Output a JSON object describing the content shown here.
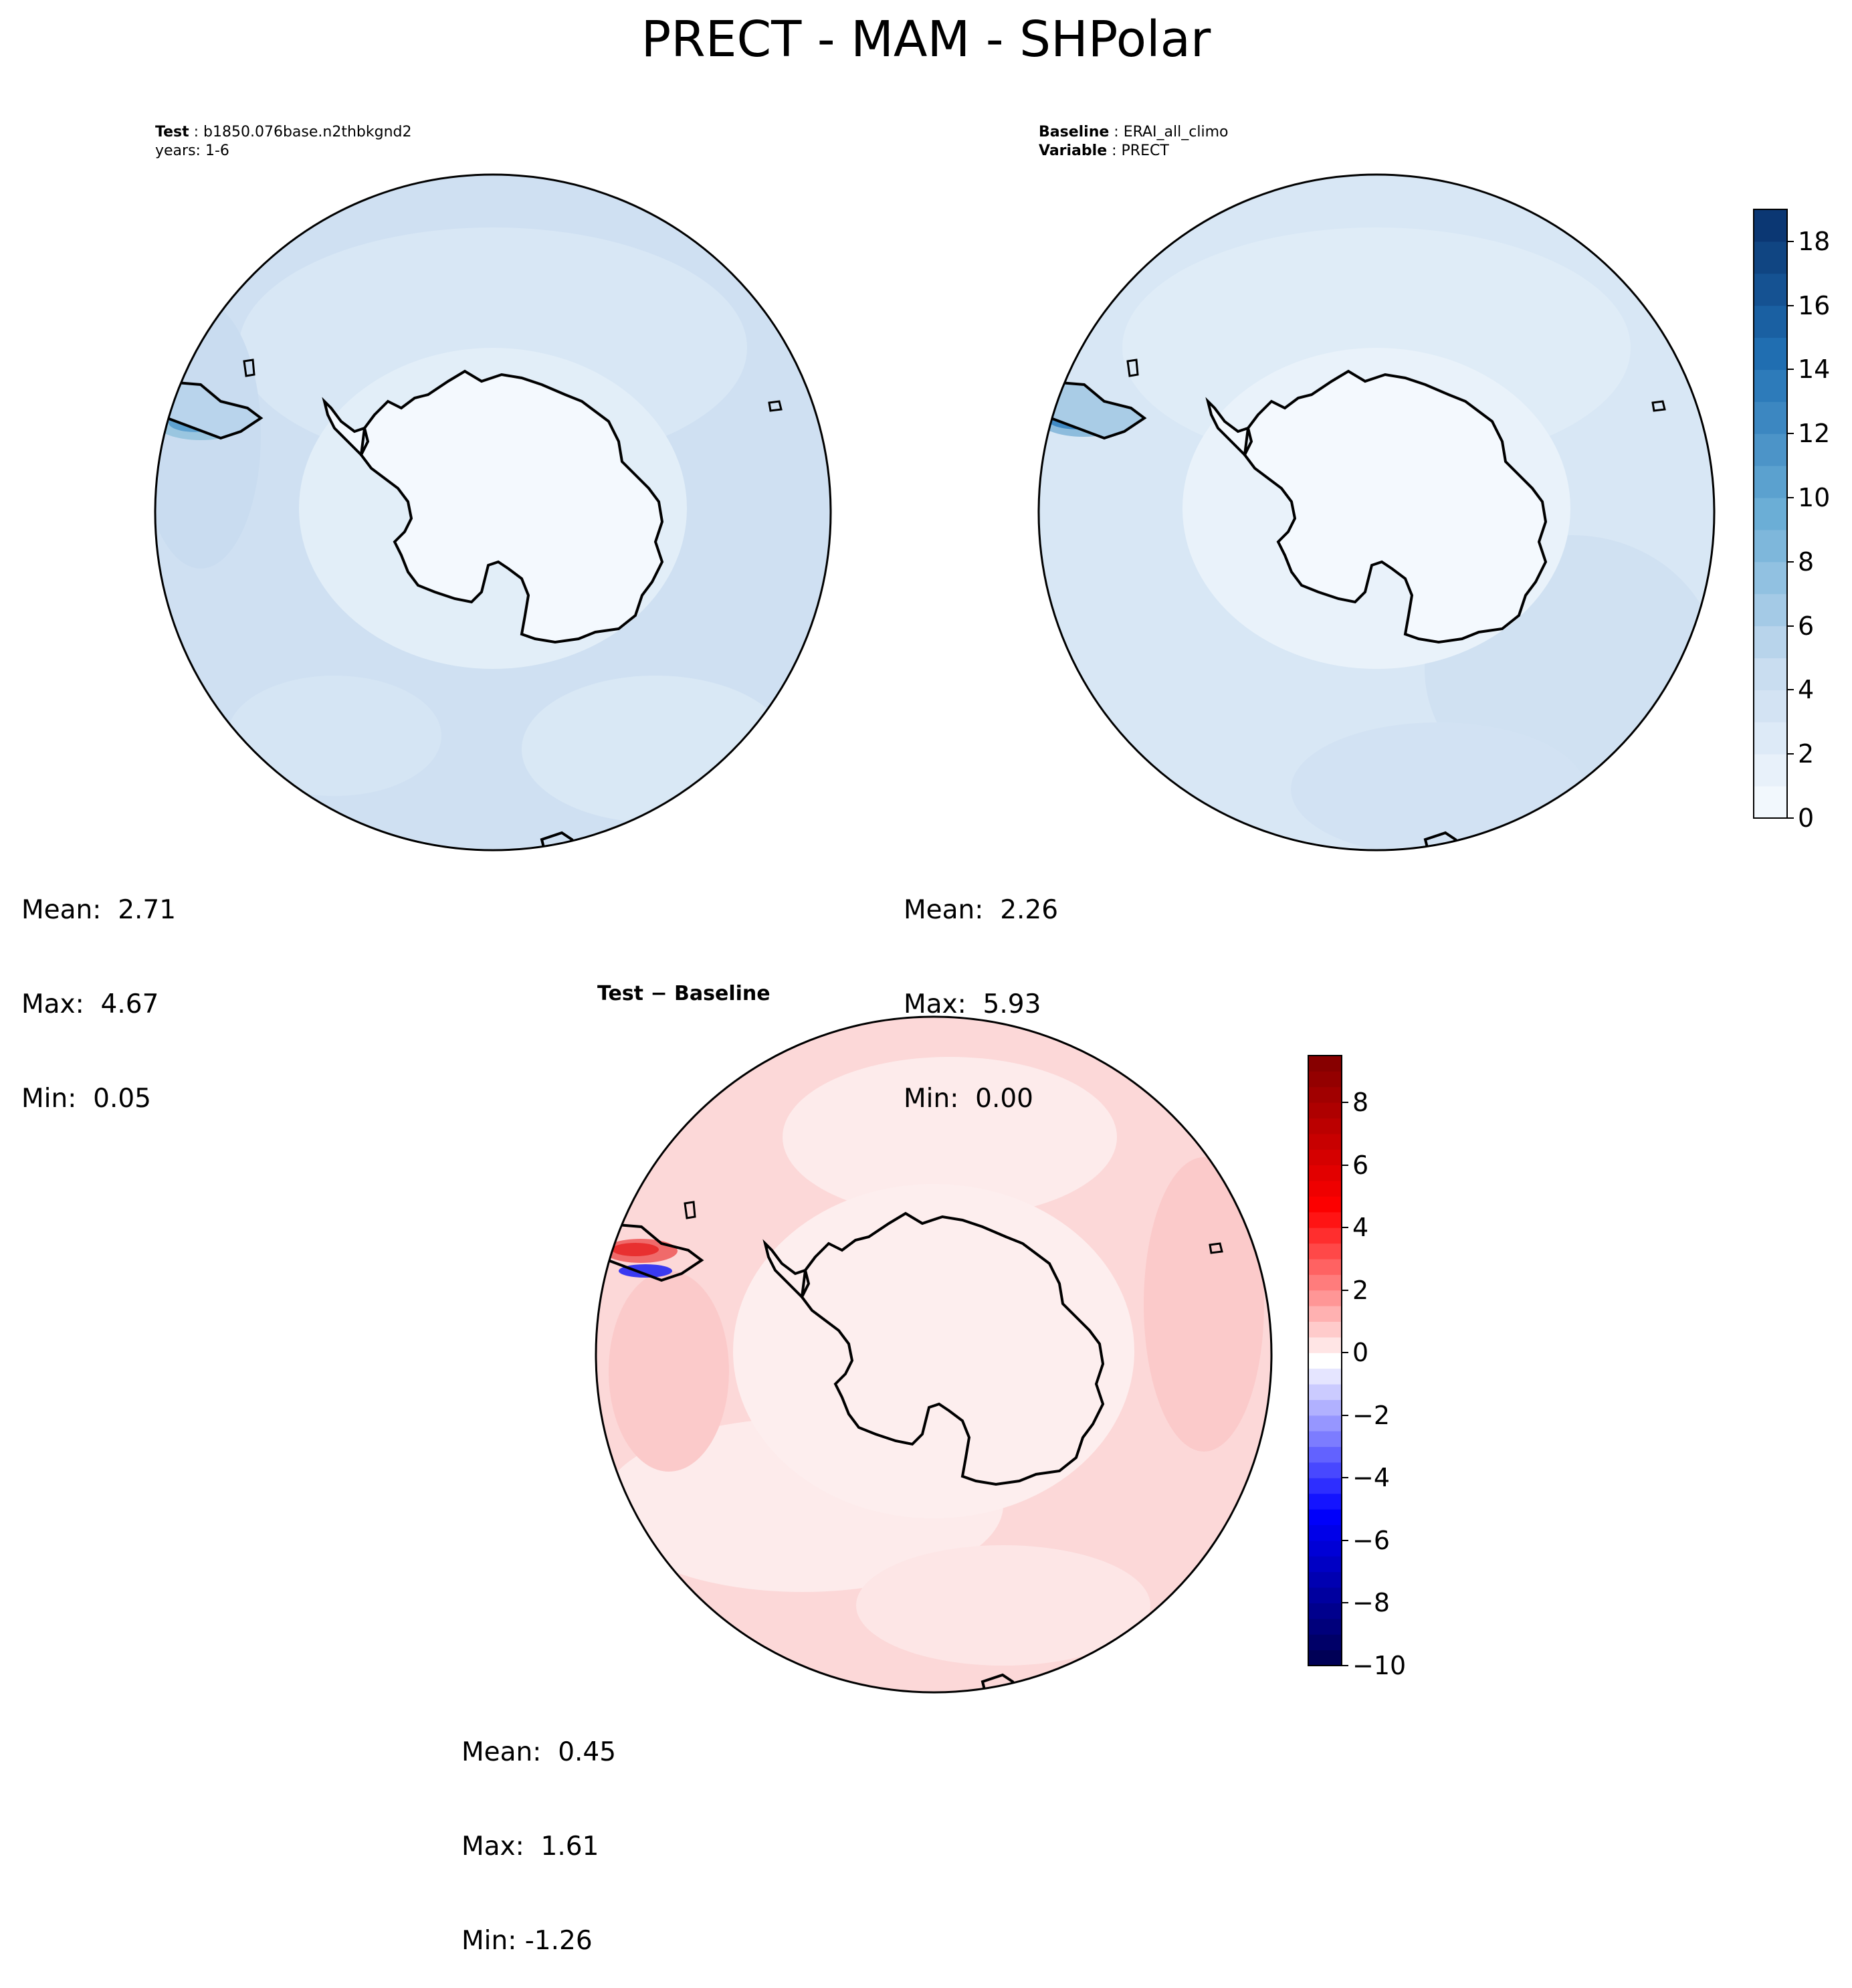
{
  "figure_title": "PRECT - MAM - SHPolar",
  "panels": [
    {
      "id": "test",
      "header_line1_label": "Test",
      "header_line1_value": "b1850.076base.n2thbkgnd2",
      "header_line2": "years: 1-6",
      "stats": {
        "mean": "Mean:  2.71",
        "max": "Max:  4.67",
        "min": "Min:  0.05"
      }
    },
    {
      "id": "baseline",
      "header_line1_label": "Baseline",
      "header_line1_value": "ERAI_all_climo",
      "header_line2_label": "Variable",
      "header_line2_value": "PRECT",
      "stats": {
        "mean": "Mean:  2.26",
        "max": "Max:  5.93",
        "min": "Min:  0.00"
      }
    },
    {
      "id": "diff",
      "title": "Test − Baseline",
      "stats": {
        "mean": "Mean:  0.45",
        "max": "Max:  1.61",
        "min": "Min: -1.26"
      }
    }
  ],
  "colorbars": {
    "precip": {
      "colormap": "Blues",
      "range": [
        0,
        19
      ],
      "ticks": [
        "0",
        "2",
        "4",
        "6",
        "8",
        "10",
        "12",
        "14",
        "16",
        "18"
      ],
      "tick_values": [
        0,
        2,
        4,
        6,
        8,
        10,
        12,
        14,
        16,
        18
      ]
    },
    "diff": {
      "colormap": "seismic",
      "range": [
        -10,
        9.5
      ],
      "ticks": [
        "−10",
        "−8",
        "−6",
        "−4",
        "−2",
        "0",
        "2",
        "4",
        "6",
        "8"
      ],
      "tick_values": [
        -10,
        -8,
        -6,
        -4,
        -2,
        0,
        2,
        4,
        6,
        8
      ]
    }
  },
  "map": {
    "projection": "South Polar Stereographic",
    "region": "SHPolar",
    "land_fill": "Antarctica (near 0)",
    "coastline_color": "#000000"
  },
  "colors": {
    "ocean_test": "#d3e3f3",
    "ocean_baseline": "#dbe9f6",
    "antarctica_fill": "#f4f9fe",
    "diff_ocean": "#fcd3d3",
    "diff_antarctica": "#fcecec",
    "peninsula_blue_dark": "#2f7ebc",
    "diff_red": "#f03a3a",
    "diff_blue": "#2b2bf0"
  }
}
